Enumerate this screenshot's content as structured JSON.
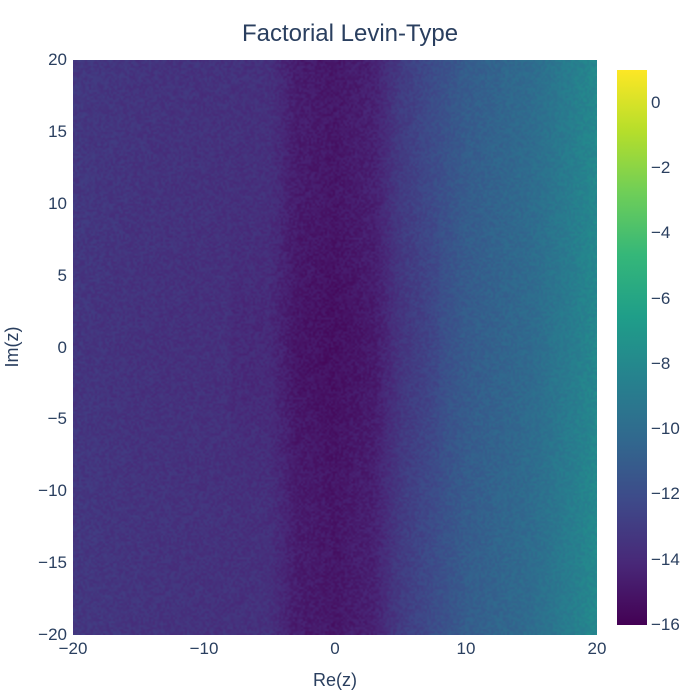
{
  "chart_data": {
    "type": "heatmap",
    "title": "Factorial Levin-Type",
    "xlabel": "Re(z)",
    "ylabel": "Im(z)",
    "xlim": [
      -20,
      20
    ],
    "ylim": [
      -20,
      20
    ],
    "x_ticks": [
      "−20",
      "−10",
      "0",
      "10",
      "20"
    ],
    "y_ticks": [
      "20",
      "15",
      "10",
      "5",
      "0",
      "−5",
      "−10",
      "−15",
      "−20"
    ],
    "colorscale": "viridis",
    "zlim": [
      -16,
      1
    ],
    "colorbar_ticks": [
      "0",
      "−2",
      "−4",
      "−6",
      "−8",
      "−10",
      "−12",
      "−14",
      "−16"
    ],
    "x_profile": {
      "x": [
        -20,
        -15,
        -10,
        -5,
        -3,
        0,
        3,
        5,
        8,
        10,
        15,
        20
      ],
      "z": [
        -13.2,
        -13.4,
        -13.5,
        -13.6,
        -14.6,
        -14.9,
        -14.4,
        -13.0,
        -11.8,
        -11.0,
        -10.0,
        -8.0
      ]
    },
    "colors": {
      "viridis": [
        "#440154",
        "#482878",
        "#3e4989",
        "#31688e",
        "#26828e",
        "#1f9e89",
        "#35b779",
        "#6ece58",
        "#b5de2b",
        "#fde725"
      ]
    }
  }
}
